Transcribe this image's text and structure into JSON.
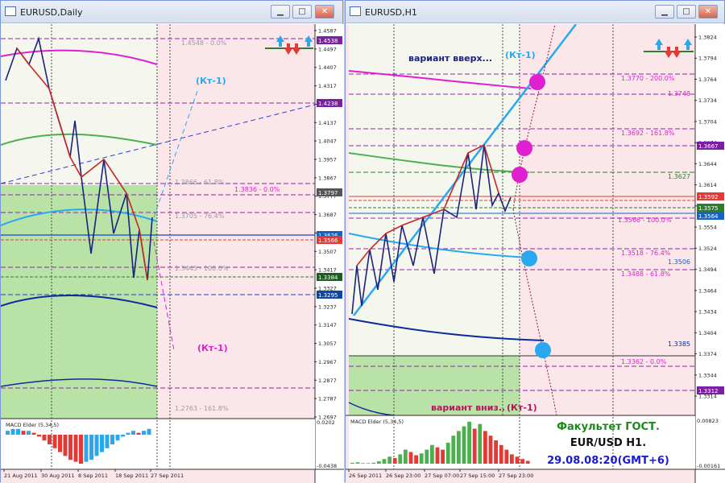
{
  "left_window": {
    "title": "EURUSD,Daily",
    "level_labels": {
      "fibo0": "1.4548 - 0.0%",
      "fibo618": "1.3866 - 61.8%",
      "fibo_top0": "1.3836 - 0.0%",
      "fibo764": "1.3705 - 76.4%",
      "fibo100": "1.3445 - 100.0%",
      "fibo1618": "1.2763 - 161.8%"
    },
    "kt_top": "(Кт-1)",
    "kt_bottom": "(Кт-1)",
    "price_ticks": [
      "1.4587",
      "1.4497",
      "1.4407",
      "1.4317",
      "1.4227",
      "1.4137",
      "1.4047",
      "1.3957",
      "1.3867",
      "1.3777",
      "1.3687",
      "1.3597",
      "1.3507",
      "1.3417",
      "1.3327",
      "1.3237",
      "1.3147",
      "1.3057",
      "1.2967",
      "1.2877",
      "1.2787",
      "1.2697"
    ],
    "price_tags": [
      {
        "text": "1.4538",
        "color": "#7b1fa2"
      },
      {
        "text": "1.4238",
        "color": "#7b1fa2"
      },
      {
        "text": "1.3797",
        "color": "#555555"
      },
      {
        "text": "1.3626",
        "color": "#1565c0"
      },
      {
        "text": "1.3566",
        "color": "#e53935"
      },
      {
        "text": "1.3384",
        "color": "#1b5e20"
      },
      {
        "text": "1.3295",
        "color": "#0d47a1"
      }
    ],
    "macd_label": "MACD Elder (5,34,5)",
    "macd_ticks": [
      "0.0202",
      "-0.0438"
    ],
    "date_ticks": [
      "21 Aug 2011",
      "30 Aug 2011",
      "8 Sep 2011",
      "18 Sep 2011",
      "27 Sep 2011"
    ]
  },
  "right_window": {
    "title": "EURUSD,H1",
    "label_up": "вариант вверх...",
    "kt_up": "(Кт-1)",
    "label_down": "вариант вниз..",
    "kt_down": "(Кт-1)",
    "level_labels": {
      "l200": "1.3770 - 200.0%",
      "l1618": "1.3692 - 161.8%",
      "l100": "1.3566 - 100.0%",
      "l764": "1.3518 - 76.4%",
      "l618": "1.3488 - 61.8%",
      "l0": "1.3362 - 0.0%"
    },
    "line_values": {
      "v3748": "1.3748",
      "v3627": "1.3627",
      "v3506": "1.3506",
      "v3385": "1.3385"
    },
    "price_ticks": [
      "1.3824",
      "1.3794",
      "1.3764",
      "1.3734",
      "1.3704",
      "1.3674",
      "1.3644",
      "1.3614",
      "1.3584",
      "1.3554",
      "1.3524",
      "1.3494",
      "1.3464",
      "1.3434",
      "1.3404",
      "1.3374",
      "1.3344",
      "1.3314"
    ],
    "price_tags": [
      {
        "text": "1.3667",
        "color": "#7b1fa2"
      },
      {
        "text": "1.3592",
        "color": "#e53935"
      },
      {
        "text": "1.3575",
        "color": "#2e7d32"
      },
      {
        "text": "1.3564",
        "color": "#1565c0"
      },
      {
        "text": "1.3312",
        "color": "#7b1fa2"
      }
    ],
    "macd_label": "MACD Elder (5,34,5)",
    "macd_ticks": [
      "0.00823",
      "-0.00161"
    ],
    "date_ticks": [
      "26 Sep 2011",
      "26 Sep 23:00",
      "27 Sep 07:00",
      "27 Sep 15:00",
      "27 Sep 23:00"
    ],
    "caption_line1": "Факультет ГОСТ.",
    "caption_line2": "EUR/USD H1.",
    "caption_line3": "29.08.08:20(GMT+6)"
  },
  "colors": {
    "chart_bg": "#fbe7ea",
    "chart_bg_light": "#f5f7ee",
    "chart_green": "#b9e3a6",
    "candle_line": "#c62828",
    "candle_line_alt": "#1a237e"
  }
}
